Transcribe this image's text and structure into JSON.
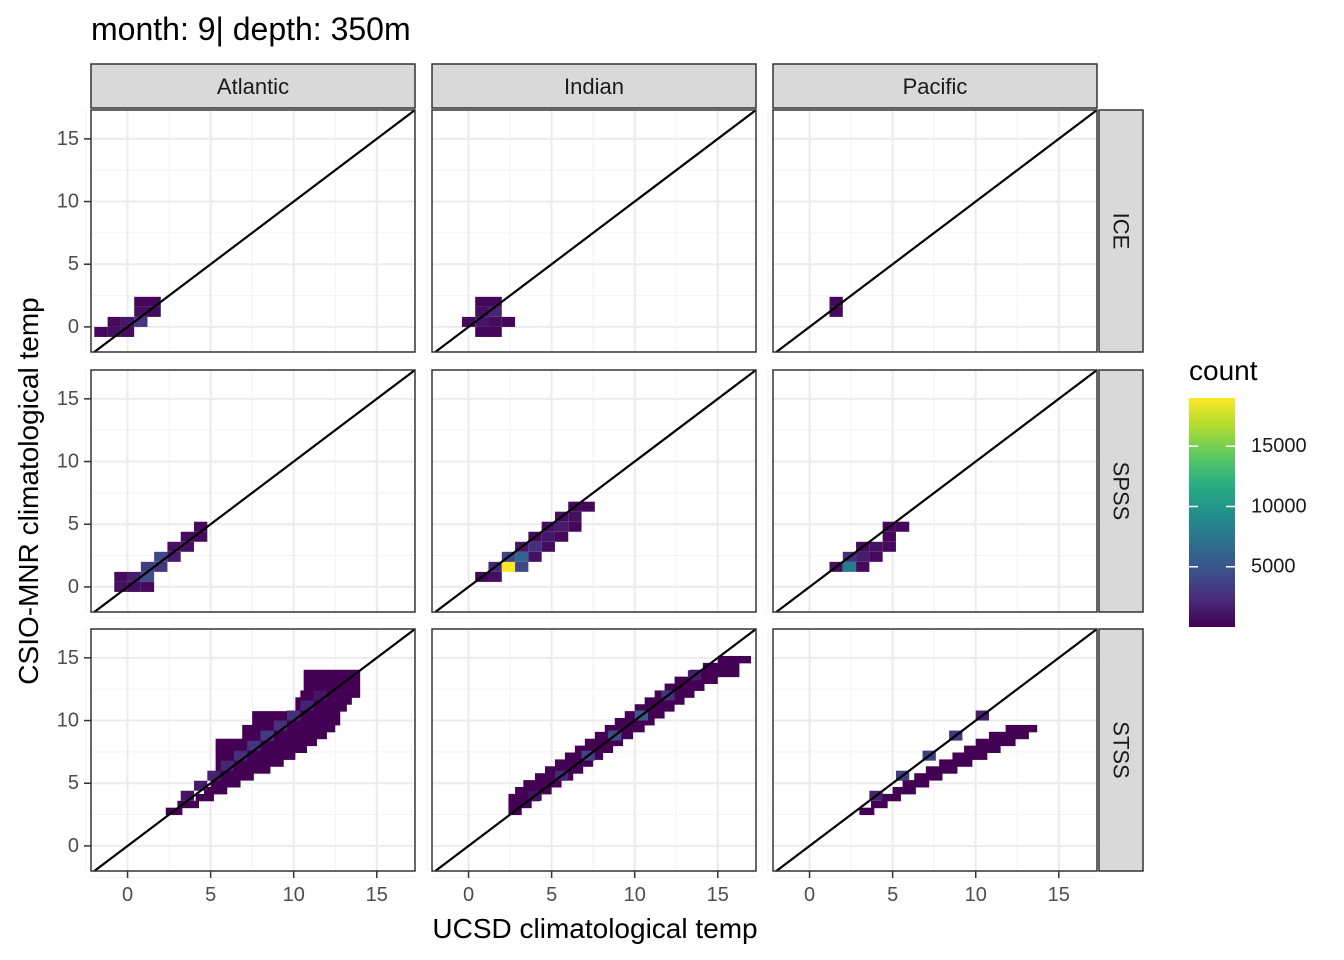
{
  "chart_data": {
    "type": "heatmap",
    "title": "month: 9| depth: 350m",
    "xlabel": "UCSD climatological temp",
    "ylabel": "CSIO-MNR climatological temp",
    "xlim": [
      -2.2,
      17.3
    ],
    "ylim": [
      -2,
      17.3
    ],
    "x_ticks": [
      0,
      5,
      10,
      15
    ],
    "y_ticks": [
      0,
      5,
      10,
      15
    ],
    "x_tick_labels": [
      "0",
      "5",
      "10",
      "15"
    ],
    "y_tick_labels": [
      "0",
      "5",
      "10",
      "15"
    ],
    "columns": [
      "Atlantic",
      "Indian",
      "Pacific"
    ],
    "rows": [
      "ICE",
      "SPSS",
      "STSS"
    ],
    "reference_line": "y = x",
    "grid": true,
    "colorscale": "viridis",
    "legend": {
      "title": "count",
      "placement": "right",
      "min": 0,
      "max": 19000,
      "breaks": [
        5000,
        10000,
        15000
      ],
      "break_labels": [
        "5000",
        "10000",
        "15000"
      ]
    },
    "bin_width": 0.8,
    "panels": [
      {
        "row": "ICE",
        "column": "Atlantic",
        "bins": [
          [
            -1.6,
            -0.4,
            500
          ],
          [
            -0.8,
            -0.4,
            800
          ],
          [
            0.0,
            -0.4,
            700
          ],
          [
            -0.8,
            0.4,
            500
          ],
          [
            0.0,
            0.4,
            1200
          ],
          [
            0.8,
            0.4,
            3000
          ],
          [
            0.8,
            1.2,
            800
          ],
          [
            1.6,
            1.2,
            600
          ],
          [
            0.8,
            2.0,
            300
          ],
          [
            1.6,
            2.0,
            300
          ]
        ]
      },
      {
        "row": "ICE",
        "column": "Indian",
        "bins": [
          [
            0.8,
            -0.4,
            300
          ],
          [
            1.6,
            -0.4,
            300
          ],
          [
            0.0,
            0.4,
            400
          ],
          [
            0.8,
            0.4,
            1200
          ],
          [
            1.6,
            0.4,
            600
          ],
          [
            2.4,
            0.4,
            300
          ],
          [
            0.8,
            1.2,
            800
          ],
          [
            1.6,
            1.2,
            2000
          ],
          [
            0.8,
            2.0,
            300
          ],
          [
            1.6,
            2.0,
            300
          ]
        ]
      },
      {
        "row": "ICE",
        "column": "Pacific",
        "bins": [
          [
            1.6,
            1.2,
            500
          ],
          [
            1.6,
            2.0,
            500
          ]
        ]
      },
      {
        "row": "SPSS",
        "column": "Atlantic",
        "bins": [
          [
            -0.4,
            0.0,
            800
          ],
          [
            0.4,
            0.0,
            700
          ],
          [
            1.2,
            0.0,
            500
          ],
          [
            -0.4,
            0.8,
            600
          ],
          [
            0.4,
            0.8,
            1500
          ],
          [
            1.2,
            0.8,
            4500
          ],
          [
            1.2,
            1.6,
            3500
          ],
          [
            2.0,
            1.6,
            3000
          ],
          [
            2.0,
            2.4,
            4000
          ],
          [
            2.8,
            2.4,
            1500
          ],
          [
            2.8,
            3.2,
            800
          ],
          [
            3.6,
            3.2,
            900
          ],
          [
            3.6,
            4.0,
            600
          ],
          [
            4.4,
            4.0,
            500
          ],
          [
            4.4,
            4.8,
            400
          ]
        ]
      },
      {
        "row": "SPSS",
        "column": "Indian",
        "bins": [
          [
            0.8,
            0.8,
            300
          ],
          [
            1.6,
            0.8,
            700
          ],
          [
            1.6,
            1.6,
            2000
          ],
          [
            2.4,
            1.6,
            19000
          ],
          [
            3.2,
            1.6,
            4000
          ],
          [
            2.4,
            2.4,
            4000
          ],
          [
            3.2,
            2.4,
            6000
          ],
          [
            4.0,
            2.4,
            900
          ],
          [
            3.2,
            3.2,
            1200
          ],
          [
            4.0,
            3.2,
            2500
          ],
          [
            4.8,
            3.2,
            600
          ],
          [
            4.0,
            4.0,
            600
          ],
          [
            4.8,
            4.0,
            1200
          ],
          [
            5.6,
            4.0,
            500
          ],
          [
            4.8,
            4.8,
            900
          ],
          [
            5.6,
            4.8,
            1500
          ],
          [
            6.4,
            4.8,
            400
          ],
          [
            5.6,
            5.6,
            800
          ],
          [
            6.4,
            5.6,
            700
          ],
          [
            6.4,
            6.4,
            400
          ],
          [
            7.2,
            6.4,
            300
          ]
        ]
      },
      {
        "row": "SPSS",
        "column": "Pacific",
        "bins": [
          [
            1.6,
            1.6,
            700
          ],
          [
            2.4,
            1.6,
            8000
          ],
          [
            3.2,
            1.6,
            500
          ],
          [
            2.4,
            2.4,
            2500
          ],
          [
            3.2,
            2.4,
            1500
          ],
          [
            4.0,
            2.4,
            500
          ],
          [
            3.2,
            3.2,
            600
          ],
          [
            4.0,
            3.2,
            900
          ],
          [
            4.8,
            3.2,
            500
          ],
          [
            4.8,
            4.0,
            400
          ],
          [
            4.8,
            4.8,
            500
          ],
          [
            5.6,
            4.8,
            300
          ]
        ]
      },
      {
        "row": "STSS",
        "column": "Atlantic",
        "bins": [
          [
            3.6,
            4.0,
            1000
          ],
          [
            4.4,
            4.8,
            1500
          ],
          [
            5.2,
            5.6,
            1800
          ],
          [
            6.0,
            6.4,
            2000
          ],
          [
            6.8,
            7.2,
            2500
          ],
          [
            7.6,
            8.0,
            2800
          ],
          [
            8.4,
            8.8,
            3200
          ],
          [
            9.2,
            9.6,
            2600
          ],
          [
            10.0,
            10.4,
            2400
          ],
          [
            10.8,
            11.2,
            1800
          ],
          [
            11.6,
            12.0,
            1200
          ]
        ]
      },
      {
        "row": "STSS",
        "column": "Indian",
        "bins": [
          [
            4.0,
            4.0,
            900
          ],
          [
            5.6,
            5.6,
            2000
          ],
          [
            7.2,
            7.2,
            3800
          ],
          [
            8.8,
            8.8,
            4200
          ],
          [
            10.4,
            10.4,
            5500
          ],
          [
            12.0,
            12.0,
            2600
          ],
          [
            13.6,
            13.6,
            1500
          ]
        ]
      },
      {
        "row": "STSS",
        "column": "Pacific",
        "bins": [
          [
            4.0,
            4.0,
            1800
          ],
          [
            5.6,
            5.6,
            3400
          ],
          [
            7.2,
            7.2,
            3600
          ],
          [
            8.8,
            8.8,
            2800
          ],
          [
            10.4,
            10.4,
            1600
          ]
        ]
      }
    ]
  }
}
